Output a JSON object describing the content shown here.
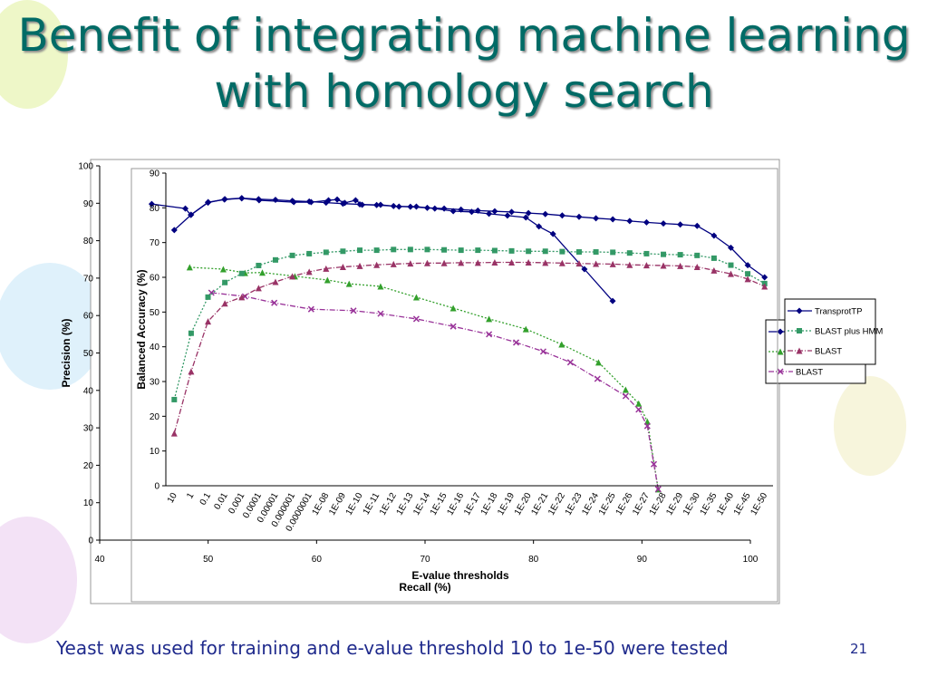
{
  "title": "Benefit of integrating machine learning with homology search",
  "caption": "Yeast was used for training and e-value threshold 10 to 1e-50 were tested",
  "slide_number": "21",
  "chart_data": [
    {
      "type": "line",
      "x_label": "Recall (%)",
      "y_label": "Precision (%)",
      "xlim": [
        40,
        100
      ],
      "xticks": [
        40,
        50,
        60,
        70,
        80,
        90,
        100
      ],
      "ylim": [
        0,
        100
      ],
      "yticks": [
        0,
        10,
        20,
        30,
        40,
        50,
        60,
        70,
        80,
        90,
        100
      ],
      "legend": "right",
      "series": [
        {
          "color": "#000080",
          "marker": "diamond",
          "dash": "solid",
          "x": [
            44.8,
            47.9,
            48.4,
            50,
            51.5,
            53.1,
            54.7,
            57.9,
            59.5,
            61.1,
            61.9,
            62.6,
            63.6,
            64.2,
            65.9,
            67.6,
            69.2,
            70.9,
            72.6,
            74.3,
            75.9,
            77.6,
            79.3,
            80.5,
            81.8,
            84.7,
            87.3
          ],
          "values": [
            89.8,
            88.6,
            86.9,
            90.3,
            91,
            91.3,
            90.8,
            90.3,
            90.3,
            90.8,
            91,
            90.1,
            90.8,
            89.6,
            89.6,
            89.1,
            89.1,
            88.6,
            87.9,
            87.7,
            87.2,
            86.7,
            86.2,
            83.8,
            81.8,
            72.4,
            63.9
          ]
        },
        {
          "color": "#33a02c",
          "marker": "triangle",
          "dash": "dotted",
          "x": [
            48.3,
            51.4,
            53.4,
            55,
            58,
            61,
            63,
            65.9,
            69.2,
            72.6,
            75.9,
            79.3,
            82.6,
            86,
            88.5,
            89.7,
            90.5,
            91.5
          ],
          "values": [
            72.9,
            72.4,
            71.4,
            71.5,
            70.5,
            69.5,
            68.5,
            67.8,
            64.9,
            62,
            59.1,
            56.4,
            52.3,
            47.5,
            40.2,
            36.5,
            31.7,
            13.6
          ]
        },
        {
          "name": "BLAST",
          "color": "#993399",
          "marker": "x",
          "dash": "dashdot",
          "x": [
            50.3,
            53.4,
            56.1,
            59.5,
            63.4,
            65.9,
            69.2,
            72.6,
            75.9,
            78.4,
            80.9,
            83.4,
            85.9,
            88.5,
            89.7,
            90.5,
            91.1,
            91.5
          ],
          "values": [
            66.1,
            65.1,
            63.4,
            61.7,
            61.3,
            60.5,
            59.1,
            57.1,
            55,
            52.8,
            50.4,
            47.5,
            43.1,
            38.5,
            34.9,
            30.5,
            20.3,
            13.6
          ]
        }
      ]
    },
    {
      "type": "line",
      "x_label": "E-value thresholds",
      "y_label": "Balanced Accuracy (%)",
      "categories": [
        "10",
        "1",
        "0.1",
        "0.01",
        "0.001",
        "0.0001",
        "0.00001",
        "0.000001",
        "0.0000001",
        "1E-08",
        "1E-09",
        "1E-10",
        "1E-11",
        "1E-12",
        "1E-13",
        "1E-14",
        "1E-15",
        "1E-16",
        "1E-17",
        "1E-18",
        "1E-19",
        "1E-20",
        "1E-21",
        "1E-22",
        "1E-23",
        "1E-24",
        "1E-25",
        "1E-26",
        "1E-27",
        "1E-28",
        "1E-29",
        "1E-30",
        "1E-35",
        "1E-40",
        "1E-45",
        "1E-50"
      ],
      "ylim": [
        0,
        90
      ],
      "yticks": [
        0,
        10,
        20,
        30,
        40,
        50,
        60,
        70,
        80,
        90
      ],
      "legend": "right",
      "series": [
        {
          "name": "TransprotTP",
          "color": "#000080",
          "marker": "diamond",
          "dash": "solid",
          "values": [
            73.6,
            78,
            81.5,
            82.5,
            82.8,
            82.5,
            82.3,
            82,
            81.8,
            81.5,
            81.2,
            81,
            80.8,
            80.5,
            80.3,
            80,
            79.8,
            79.5,
            79.2,
            79,
            78.8,
            78.5,
            78.2,
            77.8,
            77.4,
            77,
            76.7,
            76.2,
            75.8,
            75.5,
            75.2,
            74.8,
            72,
            68.5,
            63.5,
            60
          ]
        },
        {
          "name": "BLAST plus HMM",
          "color": "#339966",
          "marker": "square",
          "dash": "dotted",
          "values": [
            24.8,
            43.9,
            54.3,
            58.5,
            61.1,
            63.4,
            65,
            66.3,
            66.8,
            67.2,
            67.5,
            67.8,
            67.8,
            68,
            68,
            68,
            67.9,
            67.8,
            67.8,
            67.7,
            67.6,
            67.5,
            67.5,
            67.4,
            67.3,
            67.3,
            67.2,
            67,
            66.8,
            66.6,
            66.5,
            66.3,
            65.5,
            63.5,
            61,
            58.2
          ]
        },
        {
          "name": "BLAST",
          "color": "#993366",
          "marker": "triangle",
          "dash": "dashdot",
          "values": [
            15.1,
            32.9,
            47.3,
            52.5,
            54.3,
            56.9,
            58.7,
            60.3,
            61.6,
            62.5,
            63,
            63.3,
            63.6,
            63.8,
            64,
            64.1,
            64.1,
            64.2,
            64.2,
            64.3,
            64.3,
            64.3,
            64.2,
            64.1,
            64,
            63.9,
            63.8,
            63.6,
            63.5,
            63.4,
            63.3,
            63,
            62,
            61,
            59.5,
            57.4
          ]
        }
      ]
    }
  ]
}
